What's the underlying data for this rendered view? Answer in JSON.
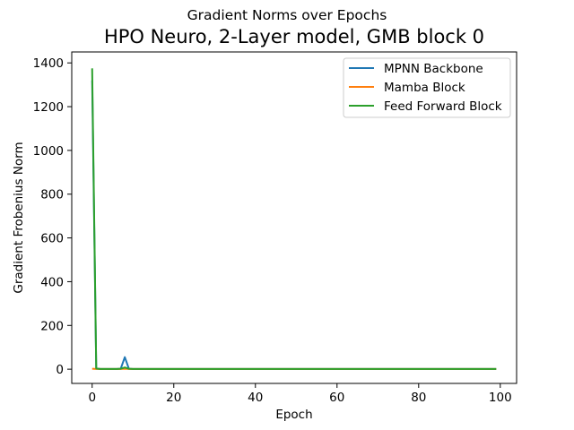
{
  "chart_data": {
    "type": "line",
    "suptitle": "Gradient Norms over Epochs",
    "title": "HPO Neuro, 2-Layer model, GMB block 0",
    "xlabel": "Epoch",
    "ylabel": "Gradient Frobenius Norm",
    "xlim": [
      -5,
      104
    ],
    "ylim": [
      -65,
      1450
    ],
    "xticks": [
      0,
      20,
      40,
      60,
      80,
      100
    ],
    "yticks": [
      0,
      200,
      400,
      600,
      800,
      1000,
      1200,
      1400
    ],
    "grid": false,
    "legend_position": "top-right",
    "series": [
      {
        "name": "MPNN Backbone",
        "color": "#1f77b4",
        "points": [
          [
            0,
            1320
          ],
          [
            1,
            3
          ],
          [
            2,
            1
          ],
          [
            3,
            1
          ],
          [
            4,
            1
          ],
          [
            5,
            1
          ],
          [
            6,
            1
          ],
          [
            7,
            2
          ],
          [
            8,
            55
          ],
          [
            9,
            2
          ],
          [
            10,
            1
          ],
          [
            15,
            1
          ],
          [
            20,
            1
          ],
          [
            30,
            1
          ],
          [
            40,
            1
          ],
          [
            50,
            1
          ],
          [
            60,
            1
          ],
          [
            70,
            1
          ],
          [
            80,
            1
          ],
          [
            90,
            1
          ],
          [
            99,
            1
          ]
        ]
      },
      {
        "name": "Mamba Block",
        "color": "#ff7f0e",
        "points": [
          [
            0,
            2
          ],
          [
            1,
            1
          ],
          [
            2,
            1
          ],
          [
            3,
            1
          ],
          [
            4,
            1
          ],
          [
            5,
            1
          ],
          [
            6,
            1
          ],
          [
            7,
            1
          ],
          [
            8,
            2
          ],
          [
            9,
            1
          ],
          [
            10,
            1
          ],
          [
            20,
            1
          ],
          [
            40,
            1
          ],
          [
            60,
            1
          ],
          [
            80,
            1
          ],
          [
            99,
            1
          ]
        ]
      },
      {
        "name": "Feed Forward Block",
        "color": "#2ca02c",
        "points": [
          [
            0,
            1375
          ],
          [
            1,
            3
          ],
          [
            2,
            1
          ],
          [
            3,
            1
          ],
          [
            4,
            1
          ],
          [
            5,
            1
          ],
          [
            6,
            1
          ],
          [
            7,
            2
          ],
          [
            8,
            8
          ],
          [
            9,
            2
          ],
          [
            10,
            1
          ],
          [
            15,
            1
          ],
          [
            20,
            1
          ],
          [
            30,
            1
          ],
          [
            40,
            1
          ],
          [
            50,
            1
          ],
          [
            60,
            1
          ],
          [
            70,
            1
          ],
          [
            80,
            1
          ],
          [
            90,
            1
          ],
          [
            99,
            1
          ]
        ]
      }
    ]
  }
}
